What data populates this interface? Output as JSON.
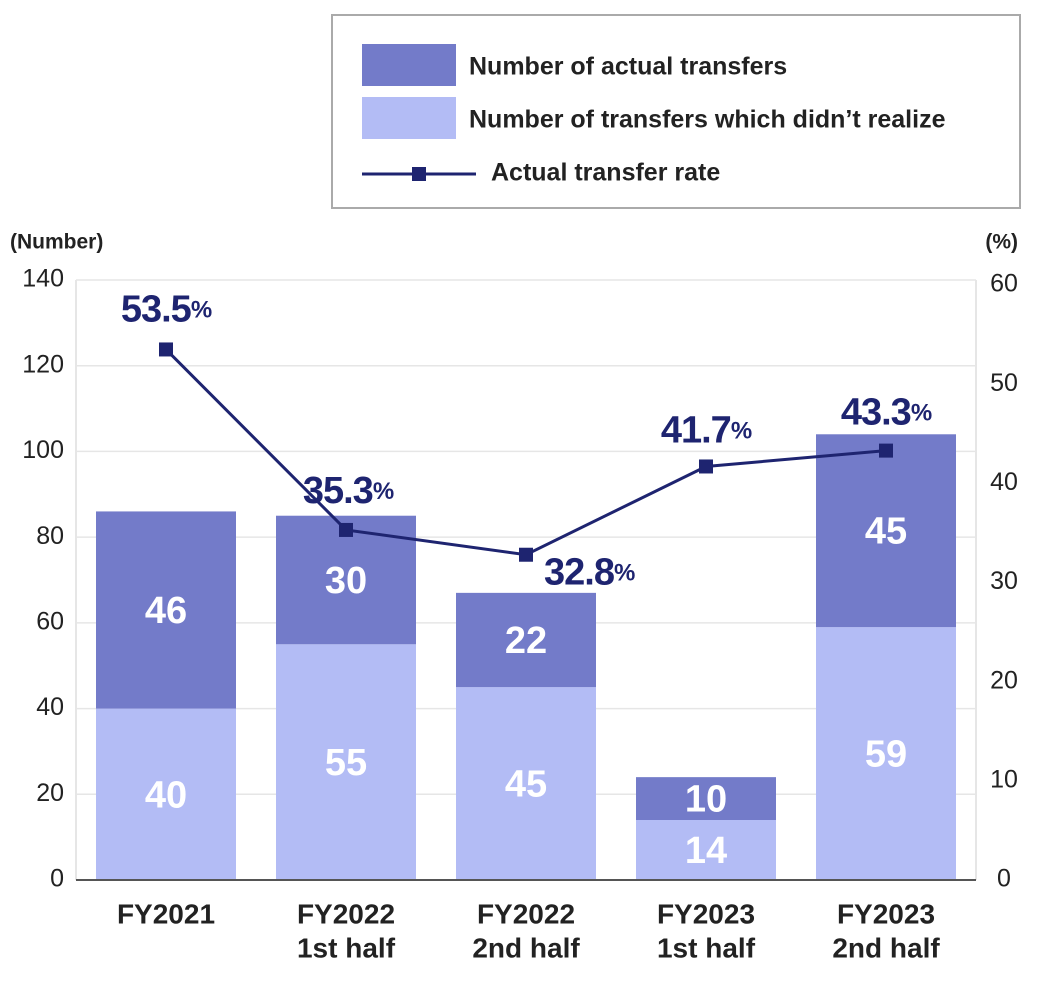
{
  "chart_data": {
    "type": "bar",
    "stacked": true,
    "ylabel": "(Number)",
    "y2label": "(%)",
    "categories": [
      [
        "FY2021"
      ],
      [
        "FY2022",
        "1st half"
      ],
      [
        "FY2022",
        "2nd half"
      ],
      [
        "FY2023",
        "1st half"
      ],
      [
        "FY2023",
        "2nd half"
      ]
    ],
    "series": [
      {
        "name": "Number of actual transfers",
        "type": "bar",
        "color": "#737bc9",
        "values": [
          46,
          30,
          22,
          10,
          45
        ]
      },
      {
        "name": "Number of transfers which didn’t realize",
        "type": "bar",
        "color": "#b3bcf5",
        "values": [
          40,
          55,
          45,
          14,
          59
        ]
      },
      {
        "name": "Actual transfer rate",
        "type": "line",
        "axis": "y2",
        "color": "#1e2470",
        "values": [
          53.5,
          35.3,
          32.8,
          41.7,
          43.3
        ],
        "value_labels": [
          "53.5%",
          "35.3%",
          "32.8%",
          "41.7%",
          "43.3%"
        ]
      }
    ],
    "ylim": [
      0,
      140
    ],
    "yticks": [
      0,
      20,
      40,
      60,
      80,
      100,
      120,
      140
    ],
    "y2lim": [
      0,
      60
    ],
    "y2ticks": [
      0,
      10,
      20,
      30,
      40,
      50,
      60
    ],
    "grid": true,
    "legend": "top-right"
  }
}
